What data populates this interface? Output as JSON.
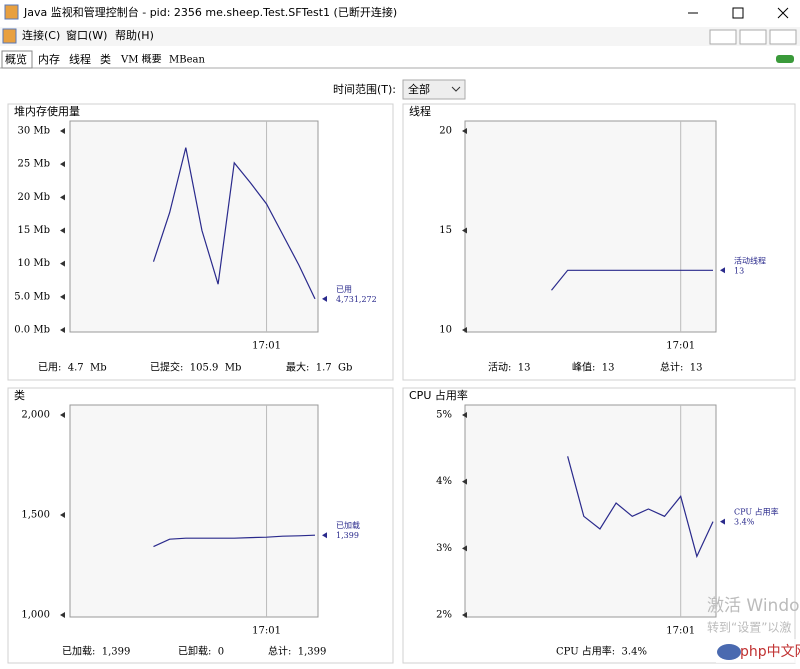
{
  "window": {
    "title": "Java 监视和管理控制台 - pid: 2356 me.sheep.Test.SFTest1 (已断开连接)",
    "menu": [
      "连接(C)",
      "窗口(W)",
      "帮助(H)"
    ],
    "tabs": [
      "概览",
      "内存",
      "线程",
      "类",
      "VM 概要",
      "MBean"
    ],
    "time_range_label": "时间范围(T):",
    "time_range_value": "全部",
    "watermark": [
      "激活 Windo",
      "转到“设置”以激"
    ],
    "logo": "php中文网"
  },
  "chart_data": [
    {
      "type": "line",
      "title": "堆内存使用量",
      "categories": [
        null,
        null,
        null,
        null,
        null,
        null,
        null,
        "17:01",
        null,
        null,
        null
      ],
      "series": [
        {
          "name": "已用",
          "color": "#2a2a8c",
          "legend_value": "4,731,272",
          "values": [
            10.3,
            17.7,
            27.5,
            15,
            6.9,
            25.2,
            22.2,
            19,
            14.4,
            9.8,
            4.7
          ]
        }
      ],
      "ylim": [
        0,
        30
      ],
      "yticks": [
        {
          "value": 0,
          "label": "0.0 Mb"
        },
        {
          "value": 5,
          "label": "5.0 Mb"
        },
        {
          "value": 10,
          "label": "10 Mb"
        },
        {
          "value": 15,
          "label": "15 Mb"
        },
        {
          "value": 20,
          "label": "20 Mb"
        },
        {
          "value": 25,
          "label": "25 Mb"
        },
        {
          "value": 30,
          "label": "30 Mb"
        }
      ],
      "footer": [
        "已用:  4.7  Mb",
        "已提交:  105.9  Mb",
        "最大:  1.7  Gb"
      ]
    },
    {
      "type": "line",
      "title": "线程",
      "categories": [
        null,
        null,
        null,
        null,
        null,
        null,
        null,
        null,
        "17:01",
        null,
        null
      ],
      "series": [
        {
          "name": "活动线程",
          "color": "#2a2a8c",
          "legend_value": "13",
          "values": [
            12,
            13,
            13,
            13,
            13,
            13,
            13,
            13,
            13,
            13,
            13
          ]
        }
      ],
      "ylim": [
        10,
        20
      ],
      "yticks": [
        10,
        15,
        20
      ],
      "footer": [
        "活动:  13",
        "峰值:  13",
        "总计:  13"
      ]
    },
    {
      "type": "line",
      "title": "类",
      "categories": [
        null,
        null,
        null,
        null,
        null,
        null,
        null,
        "17:01",
        null,
        null,
        null
      ],
      "series": [
        {
          "name": "已加载",
          "color": "#2a2a8c",
          "legend_value": "1,399",
          "values": [
            1342,
            1379,
            1384,
            1384,
            1384,
            1384,
            1387,
            1389,
            1394,
            1396,
            1399
          ]
        }
      ],
      "ylim": [
        1000,
        2000
      ],
      "yticks": [
        {
          "value": 1000,
          "label": "1,000"
        },
        {
          "value": 1500,
          "label": "1,500"
        },
        {
          "value": 2000,
          "label": "2,000"
        }
      ],
      "footer": [
        "已加载:  1,399",
        "已卸载:  0",
        "总计:  1,399"
      ]
    },
    {
      "type": "line",
      "title": "CPU 占用率",
      "categories": [
        null,
        null,
        null,
        null,
        null,
        null,
        null,
        "17:01",
        null,
        null
      ],
      "series": [
        {
          "name": "CPU 占用率",
          "color": "#2a2a8c",
          "legend_value": "3.4%",
          "values": [
            4.38,
            3.48,
            3.29,
            3.68,
            3.48,
            3.59,
            3.48,
            3.78,
            2.88,
            3.4
          ]
        }
      ],
      "ylim": [
        2,
        5
      ],
      "yticks": [
        {
          "value": 2,
          "label": "2%"
        },
        {
          "value": 3,
          "label": "3%"
        },
        {
          "value": 4,
          "label": "4%"
        },
        {
          "value": 5,
          "label": "5%"
        }
      ],
      "footer": [
        "CPU 占用率:  3.4%"
      ]
    }
  ]
}
